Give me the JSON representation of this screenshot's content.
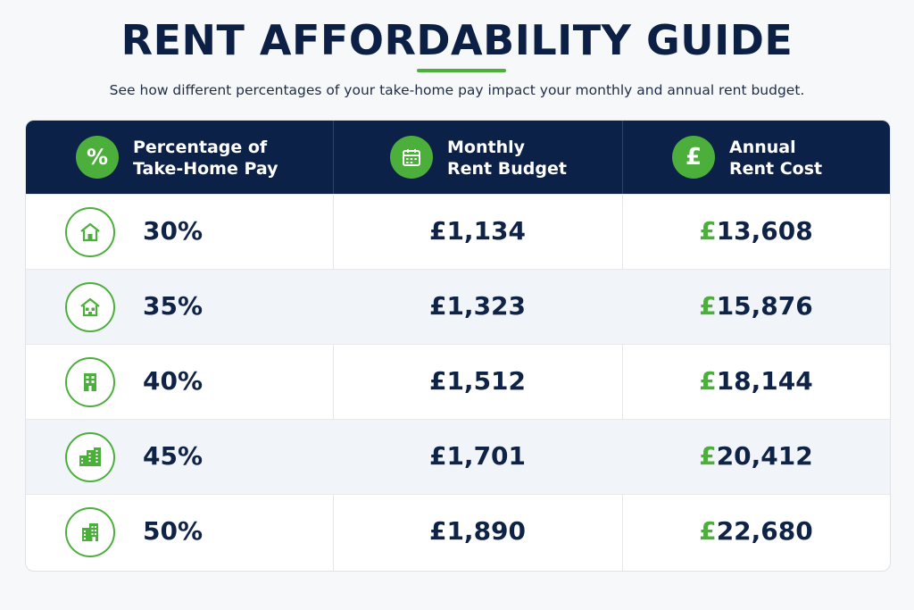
{
  "title": "RENT AFFORDABILITY GUIDE",
  "subtitle": "See how different percentages of your take-home pay impact your monthly and annual rent budget.",
  "colors": {
    "navy": "#0c2148",
    "green": "#4caf3c",
    "row_alt": "#f1f4f9"
  },
  "headers": [
    {
      "icon": "percent-icon",
      "glyph": "%",
      "line1": "Percentage of",
      "line2": "Take-Home Pay"
    },
    {
      "icon": "calendar-icon",
      "glyph": "",
      "line1": "Monthly",
      "line2": "Rent Budget"
    },
    {
      "icon": "pound-icon",
      "glyph": "£",
      "line1": "Annual",
      "line2": "Rent Cost"
    }
  ],
  "rows": [
    {
      "icon": "house-icon",
      "percent": "30%",
      "monthly": "£1,134",
      "annual_currency": "£",
      "annual_value": "13,608"
    },
    {
      "icon": "house-icon",
      "percent": "35%",
      "monthly": "£1,323",
      "annual_currency": "£",
      "annual_value": "15,876"
    },
    {
      "icon": "building-icon",
      "percent": "40%",
      "monthly": "£1,512",
      "annual_currency": "£",
      "annual_value": "18,144"
    },
    {
      "icon": "city-buildings-icon",
      "percent": "45%",
      "monthly": "£1,701",
      "annual_currency": "£",
      "annual_value": "20,412"
    },
    {
      "icon": "tower-building-icon",
      "percent": "50%",
      "monthly": "£1,890",
      "annual_currency": "£",
      "annual_value": "22,680"
    }
  ]
}
